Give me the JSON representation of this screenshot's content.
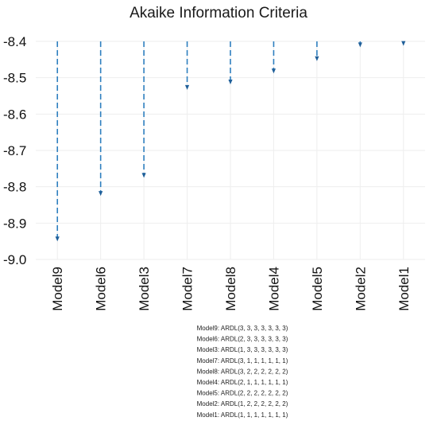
{
  "chart_data": {
    "type": "bar",
    "title": "Akaike Information Criteria",
    "categories": [
      "Model9",
      "Model6",
      "Model3",
      "Model7",
      "Model8",
      "Model4",
      "Model5",
      "Model2",
      "Model1"
    ],
    "values": [
      -8.948,
      -8.823,
      -8.773,
      -8.531,
      -8.516,
      -8.486,
      -8.452,
      -8.414,
      -8.41
    ],
    "ylim": [
      -9.0,
      -8.4
    ],
    "yticks": [
      -8.4,
      -8.5,
      -8.6,
      -8.7,
      -8.8,
      -8.9,
      -9.0
    ],
    "ytick_labels": [
      "-8.4",
      "-8.5",
      "-8.6",
      "-8.7",
      "-8.8",
      "-8.9",
      "-9.0"
    ],
    "grid": true,
    "color": "#2e7fbf",
    "notes": [
      "Model9: ARDL(3, 3, 3, 3, 3, 3, 3)",
      "Model6: ARDL(2, 3, 3, 3, 3, 3, 3)",
      "Model3: ARDL(1, 3, 3, 3, 3, 3, 3)",
      "Model7: ARDL(3, 1, 1, 1, 1, 1, 1)",
      "Model8: ARDL(3, 2, 2, 2, 2, 2, 2)",
      "Model4: ARDL(2, 1, 1, 1, 1, 1, 1)",
      "Model5: ARDL(2, 2, 2, 2, 2, 2, 2)",
      "Model2: ARDL(1, 2, 2, 2, 2, 2, 2)",
      "Model1: ARDL(1, 1, 1, 1, 1, 1, 1)"
    ]
  }
}
